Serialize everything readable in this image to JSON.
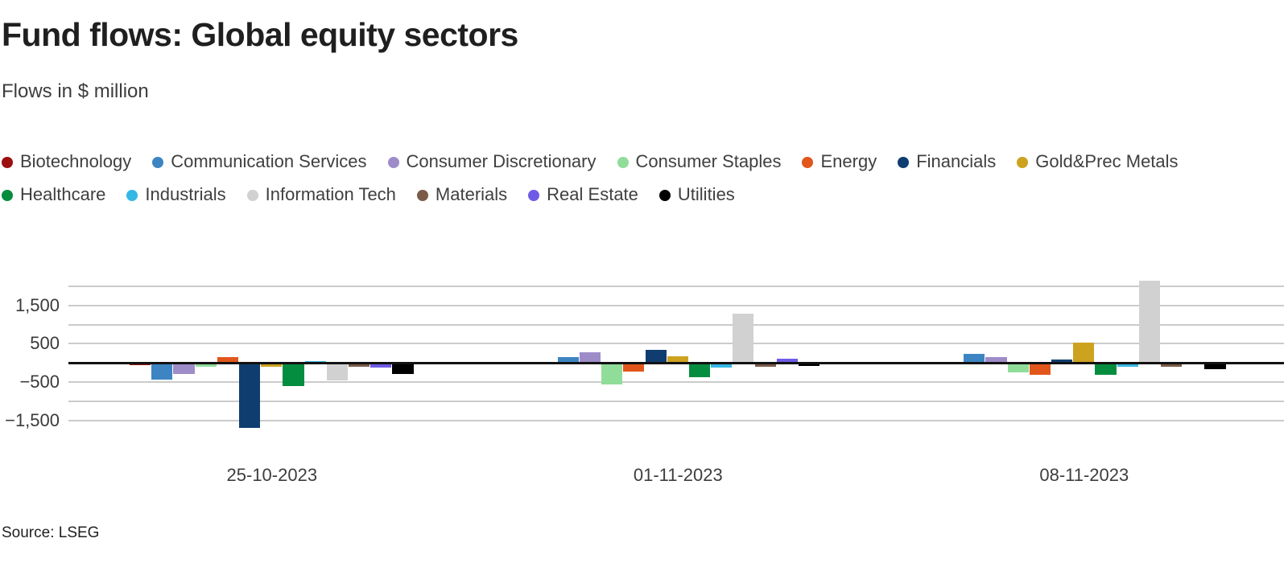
{
  "header": {
    "title": "Fund flows: Global equity sectors",
    "subtitle": "Flows in $ million"
  },
  "source": "Source: LSEG",
  "chart_data": {
    "type": "bar",
    "title": "Fund flows: Global equity sectors",
    "subtitle": "Flows in $ million",
    "unit": "$ million",
    "legend_position": "top",
    "grid": true,
    "categories": [
      "25-10-2023",
      "01-11-2023",
      "08-11-2023"
    ],
    "series": [
      {
        "name": "Biotechnology",
        "color": "#9c0f0f",
        "values": [
          -50,
          -10,
          -10
        ]
      },
      {
        "name": "Communication Services",
        "color": "#3d85c2",
        "values": [
          -440,
          160,
          240
        ]
      },
      {
        "name": "Consumer Discretionary",
        "color": "#9e8cc9",
        "values": [
          -290,
          270,
          160
        ]
      },
      {
        "name": "Consumer Staples",
        "color": "#90dd99",
        "values": [
          -110,
          -570,
          -240
        ]
      },
      {
        "name": "Energy",
        "color": "#e2561b",
        "values": [
          150,
          -230,
          -310
        ]
      },
      {
        "name": "Financials",
        "color": "#0f3d70",
        "values": [
          -1700,
          340,
          80
        ]
      },
      {
        "name": "Gold&Prec Metals",
        "color": "#cda21f",
        "values": [
          -100,
          170,
          520
        ]
      },
      {
        "name": "Healthcare",
        "color": "#058d3f",
        "values": [
          -600,
          -380,
          -320
        ]
      },
      {
        "name": "Industrials",
        "color": "#35b7e5",
        "values": [
          45,
          -120,
          -90
        ]
      },
      {
        "name": "Information Tech",
        "color": "#d1d1d1",
        "values": [
          -460,
          1280,
          2150
        ]
      },
      {
        "name": "Materials",
        "color": "#7b5c48",
        "values": [
          -100,
          -100,
          -110
        ]
      },
      {
        "name": "Real Estate",
        "color": "#6e5be6",
        "values": [
          -130,
          110,
          -30
        ]
      },
      {
        "name": "Utilities",
        "color": "#000000",
        "values": [
          -290,
          -70,
          -170
        ]
      }
    ],
    "y_axis": {
      "min": -1950,
      "max": 2380,
      "tick_values": [
        1500,
        500,
        -500,
        -1500
      ],
      "tick_labels": [
        "1,500",
        "500",
        "−500",
        "−1,500"
      ],
      "gridline_values": [
        2000,
        1500,
        1000,
        500,
        -500,
        -1000,
        -1500
      ],
      "zero_line": true
    }
  }
}
